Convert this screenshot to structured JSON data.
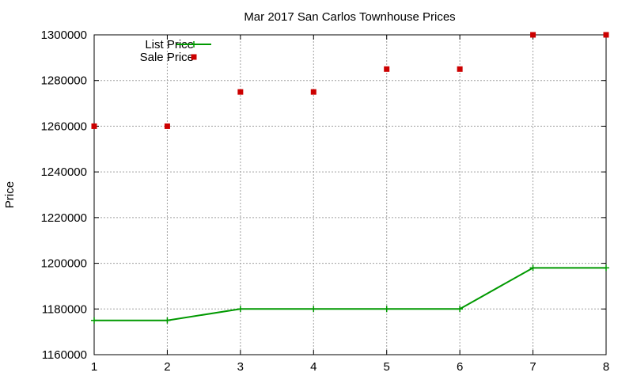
{
  "chart_data": {
    "type": "line",
    "title": "Mar 2017 San Carlos Townhouse Prices",
    "xlabel": "",
    "ylabel": "Price",
    "x": [
      1,
      2,
      3,
      4,
      5,
      6,
      7,
      8
    ],
    "xlim": [
      1,
      8
    ],
    "ylim": [
      1160000,
      1300000
    ],
    "xticks": [
      "1",
      "2",
      "3",
      "4",
      "5",
      "6",
      "7",
      "8"
    ],
    "yticks": [
      "1160000",
      "1180000",
      "1200000",
      "1220000",
      "1240000",
      "1260000",
      "1280000",
      "1300000"
    ],
    "grid": true,
    "legend_position": "top-left",
    "series": [
      {
        "name": "List Price",
        "style": "line+cross",
        "color": "#009900",
        "values": [
          1175000,
          1175000,
          1180000,
          1180000,
          1180000,
          1180000,
          1198000,
          1198000
        ]
      },
      {
        "name": "Sale Price",
        "style": "square-markers",
        "color": "#cc0000",
        "values": [
          1260000,
          1260000,
          1275000,
          1275000,
          1285000,
          1285000,
          1300000,
          1300000
        ]
      }
    ]
  }
}
